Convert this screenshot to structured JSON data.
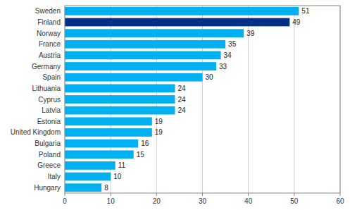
{
  "chart_data": {
    "type": "bar",
    "orientation": "horizontal",
    "categories": [
      "Sweden",
      "Finland",
      "Norway",
      "France",
      "Austria",
      "Germany",
      "Spain",
      "Lithuania",
      "Cyprus",
      "Latvia",
      "Estonia",
      "United Kingdom",
      "Bulgaria",
      "Poland",
      "Greece",
      "Italy",
      "Hungary"
    ],
    "values": [
      51,
      49,
      39,
      35,
      34,
      33,
      30,
      24,
      24,
      24,
      19,
      19,
      16,
      15,
      11,
      10,
      8
    ],
    "colors": [
      "#00b0f0",
      "#003082",
      "#00b0f0",
      "#00b0f0",
      "#00b0f0",
      "#00b0f0",
      "#00b0f0",
      "#00b0f0",
      "#00b0f0",
      "#00b0f0",
      "#00b0f0",
      "#00b0f0",
      "#00b0f0",
      "#00b0f0",
      "#00b0f0",
      "#00b0f0",
      "#00b0f0"
    ],
    "xlim": [
      0,
      60
    ],
    "xticks": [
      0,
      10,
      20,
      30,
      40,
      50,
      60
    ],
    "grid": true,
    "data_labels": true
  }
}
